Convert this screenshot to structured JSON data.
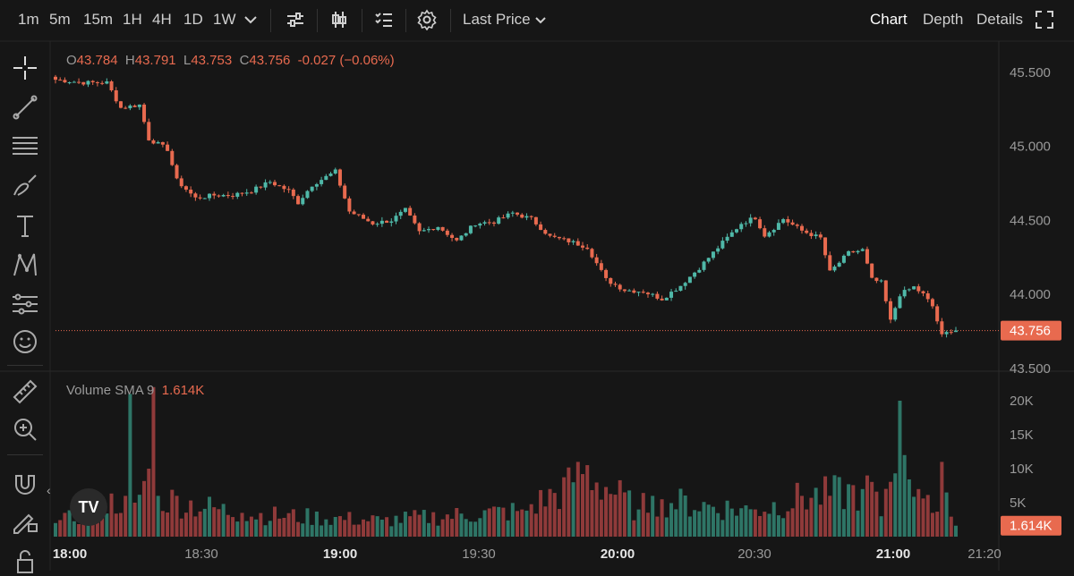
{
  "toolbar": {
    "intervals": [
      "1m",
      "5m",
      "15m",
      "1H",
      "4H",
      "1D",
      "1W"
    ],
    "active_interval": "1m",
    "price_type": "Last Price",
    "views": [
      "Chart",
      "Depth",
      "Details"
    ],
    "active_view": "Chart"
  },
  "legend": {
    "o_label": "O",
    "o": "43.784",
    "h_label": "H",
    "h": "43.791",
    "l_label": "L",
    "l": "43.753",
    "c_label": "C",
    "c": "43.756",
    "change": "-0.027 (−0.06%)"
  },
  "volume_legend": {
    "label": "Volume SMA 9",
    "value": "1.614K"
  },
  "logo_text": "TV",
  "colors": {
    "up": "#4fb8a8",
    "down": "#e86a4f",
    "vol_up": "#2e7566",
    "vol_down": "#8f3a3a",
    "bg": "#161616",
    "price_tag": "#e86a4f"
  },
  "icons": [
    "crosshair-icon",
    "trendline-icon",
    "fib-icon",
    "brush-icon",
    "text-icon",
    "pattern-icon",
    "forecast-icon",
    "emoji-icon",
    "ruler-icon",
    "zoom-icon",
    "magnet-icon",
    "lock-drawing-icon",
    "lock-icon",
    "indicators-icon",
    "candle-type-icon",
    "checklist-icon",
    "settings-icon",
    "fullscreen-icon"
  ],
  "chart_data": {
    "type": "candlestick",
    "price_axis": {
      "ticks": [
        "45.500",
        "45.000",
        "44.500",
        "44.000",
        "43.500"
      ],
      "range": [
        43.5,
        45.6
      ]
    },
    "last_price": "43.756",
    "volume_axis": {
      "ticks": [
        "20K",
        "15K",
        "10K",
        "5K"
      ],
      "range": [
        0,
        22000
      ]
    },
    "volume_sma_tag": "1.614K",
    "time_ticks": [
      {
        "label": "18:00",
        "bold": true
      },
      {
        "label": "18:30",
        "bold": false
      },
      {
        "label": "19:00",
        "bold": true
      },
      {
        "label": "19:30",
        "bold": false
      },
      {
        "label": "20:00",
        "bold": true
      },
      {
        "label": "20:30",
        "bold": false
      },
      {
        "label": "21:00",
        "bold": true
      },
      {
        "label": "21:20",
        "bold": false
      }
    ],
    "keypoints": [
      [
        0,
        45.45
      ],
      [
        6,
        45.43
      ],
      [
        11,
        45.43
      ],
      [
        14,
        45.26
      ],
      [
        18,
        45.28
      ],
      [
        20,
        45.05
      ],
      [
        24,
        44.98
      ],
      [
        26,
        44.77
      ],
      [
        30,
        44.65
      ],
      [
        34,
        44.67
      ],
      [
        38,
        44.67
      ],
      [
        42,
        44.7
      ],
      [
        46,
        44.76
      ],
      [
        50,
        44.7
      ],
      [
        52,
        44.62
      ],
      [
        55,
        44.74
      ],
      [
        60,
        44.83
      ],
      [
        63,
        44.56
      ],
      [
        68,
        44.48
      ],
      [
        72,
        44.5
      ],
      [
        75,
        44.57
      ],
      [
        78,
        44.42
      ],
      [
        82,
        44.46
      ],
      [
        86,
        44.36
      ],
      [
        90,
        44.48
      ],
      [
        94,
        44.49
      ],
      [
        98,
        44.55
      ],
      [
        102,
        44.51
      ],
      [
        106,
        44.39
      ],
      [
        110,
        44.36
      ],
      [
        114,
        44.32
      ],
      [
        118,
        44.1
      ],
      [
        122,
        44.03
      ],
      [
        126,
        44.02
      ],
      [
        130,
        43.97
      ],
      [
        134,
        44.06
      ],
      [
        138,
        44.18
      ],
      [
        143,
        44.35
      ],
      [
        147,
        44.48
      ],
      [
        150,
        44.52
      ],
      [
        152,
        44.4
      ],
      [
        154,
        44.45
      ],
      [
        156,
        44.51
      ],
      [
        160,
        44.43
      ],
      [
        164,
        44.38
      ],
      [
        166,
        44.15
      ],
      [
        170,
        44.28
      ],
      [
        173,
        44.3
      ],
      [
        175,
        44.1
      ],
      [
        177,
        44.08
      ],
      [
        179,
        43.82
      ],
      [
        181,
        44.0
      ],
      [
        184,
        44.05
      ],
      [
        186,
        44.0
      ],
      [
        188,
        43.92
      ],
      [
        190,
        43.72
      ],
      [
        192,
        43.76
      ],
      [
        193,
        43.76
      ]
    ],
    "volume_keyframes": [
      [
        0,
        2000
      ],
      [
        15,
        6000
      ],
      [
        16,
        21000
      ],
      [
        17,
        5000
      ],
      [
        20,
        10000
      ],
      [
        21,
        22000
      ],
      [
        22,
        6000
      ],
      [
        40,
        3500
      ],
      [
        70,
        2500
      ],
      [
        100,
        4000
      ],
      [
        111,
        8000
      ],
      [
        112,
        11000
      ],
      [
        125,
        4000
      ],
      [
        128,
        6000
      ],
      [
        130,
        5500
      ],
      [
        150,
        4000
      ],
      [
        160,
        6000
      ],
      [
        173,
        7000
      ],
      [
        174,
        9000
      ],
      [
        177,
        3000
      ],
      [
        181,
        20000
      ],
      [
        182,
        12000
      ],
      [
        185,
        7000
      ],
      [
        188,
        3500
      ],
      [
        190,
        11000
      ],
      [
        191,
        6500
      ],
      [
        193,
        1614
      ]
    ]
  }
}
